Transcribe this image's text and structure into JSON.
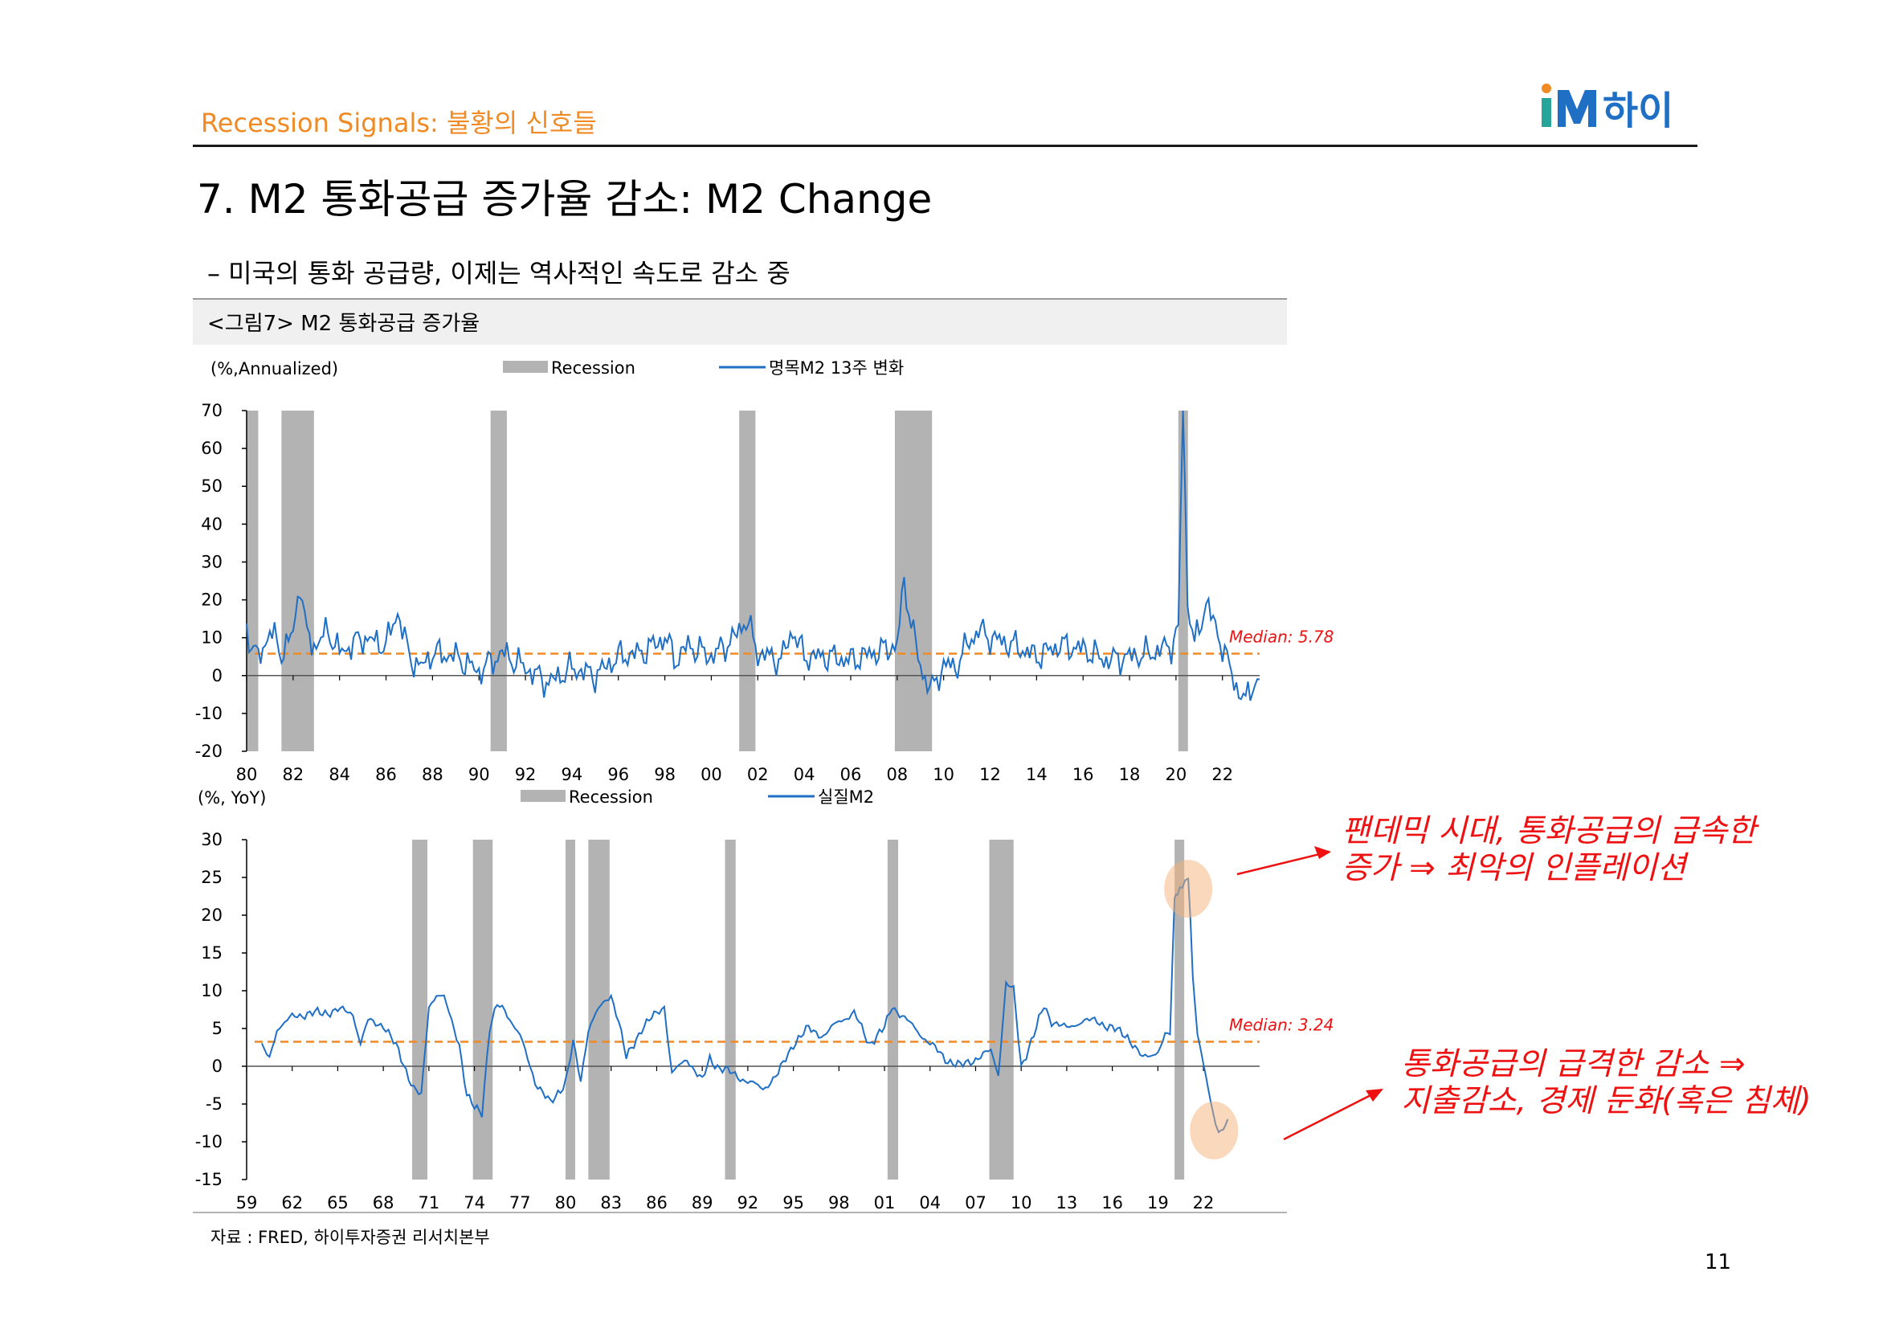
{
  "header": {
    "section_title": "Recession Signals: 불황의 신호들",
    "logo_text": "iM하이"
  },
  "page_title": "7. M2 통화공급 증가율 감소: M2 Change",
  "bullet": "– 미국의 통화 공급량, 이제는 역사적인 속도로 감소 중",
  "figure_label": "<그림7> M2 통화공급 증가율",
  "source": "자료 : FRED, 하이투자증권 리서치본부",
  "page_number": "11",
  "annotations": {
    "pandemic": [
      "팬데믹 시대, 통화공급의 급속한",
      "증가 ⇒ 최악의 인플레이션"
    ],
    "decline": [
      "통화공급의 급격한 감소 ⇒",
      "지출감소, 경제 둔화(혹은 침체)"
    ]
  },
  "colors": {
    "line": "#1f6fc5",
    "recession": "#b3b3b3",
    "median": "#f08a24",
    "accent": "#ee1111",
    "section": "#f08a24"
  },
  "chart_data": [
    {
      "type": "line",
      "title": "명목M2 13주 변화",
      "unit_label": "(%,Annualized)",
      "legend": [
        "Recession",
        "명목M2 13주 변화"
      ],
      "x_start": 1980,
      "x_end": 2023.6,
      "x_ticks": [
        1980,
        1982,
        1984,
        1986,
        1988,
        1990,
        1992,
        1994,
        1996,
        1998,
        2000,
        2002,
        2004,
        2006,
        2008,
        2010,
        2012,
        2014,
        2016,
        2018,
        2020,
        2022
      ],
      "x_tick_labels": [
        "80",
        "82",
        "84",
        "86",
        "88",
        "90",
        "92",
        "94",
        "96",
        "98",
        "00",
        "02",
        "04",
        "06",
        "08",
        "10",
        "12",
        "14",
        "16",
        "18",
        "20",
        "22"
      ],
      "ylim": [
        -20,
        70
      ],
      "y_ticks": [
        -20,
        -10,
        0,
        10,
        20,
        30,
        40,
        50,
        60,
        70
      ],
      "median": 5.78,
      "median_label": "Median: 5.78",
      "recessions": [
        [
          1980.0,
          1980.5
        ],
        [
          1981.5,
          1982.9
        ],
        [
          1990.5,
          1991.2
        ],
        [
          2001.2,
          2001.9
        ],
        [
          2007.9,
          2009.5
        ],
        [
          2020.1,
          2020.4
        ]
      ],
      "series": [
        {
          "name": "명목M2 13주 변화",
          "x": [
            1980.0,
            1980.5,
            1981.0,
            1981.5,
            1982.0,
            1982.3,
            1982.6,
            1983.0,
            1983.5,
            1984.0,
            1985.0,
            1986.0,
            1986.5,
            1987.0,
            1987.5,
            1988.0,
            1989.0,
            1990.0,
            1991.0,
            1991.5,
            1992.0,
            1993.0,
            1994.0,
            1995.0,
            1996.0,
            1997.0,
            1998.0,
            1998.5,
            1999.0,
            2000.0,
            2001.0,
            2001.5,
            2002.0,
            2003.0,
            2003.5,
            2004.0,
            2005.0,
            2006.0,
            2007.0,
            2008.0,
            2008.3,
            2008.6,
            2009.0,
            2009.5,
            2010.0,
            2010.5,
            2011.0,
            2011.5,
            2012.0,
            2013.0,
            2014.0,
            2015.0,
            2016.0,
            2017.0,
            2018.0,
            2019.0,
            2019.8,
            2020.1,
            2020.3,
            2020.5,
            2020.8,
            2021.0,
            2021.3,
            2021.6,
            2022.0,
            2022.3,
            2022.6,
            2023.0,
            2023.3,
            2023.6
          ],
          "values": [
            12,
            4,
            12,
            6,
            11,
            25,
            10,
            8,
            12,
            6,
            10,
            8,
            17,
            5,
            2,
            6,
            5,
            1,
            6,
            4,
            2,
            -2,
            2,
            0,
            5,
            6,
            10,
            4,
            8,
            5,
            10,
            15,
            6,
            4,
            12,
            5,
            5,
            4,
            6,
            8,
            25,
            14,
            2,
            -4,
            3,
            2,
            8,
            12,
            10,
            8,
            5,
            8,
            7,
            4,
            5,
            6,
            8,
            12,
            72,
            20,
            8,
            12,
            20,
            14,
            8,
            2,
            -3,
            -7,
            -2,
            -1
          ]
        }
      ]
    },
    {
      "type": "line",
      "title": "실질M2",
      "unit_label": "(%, YoY)",
      "legend": [
        "Recession",
        "실질M2"
      ],
      "x_start": 1959,
      "x_end": 2025.7,
      "x_ticks": [
        1959,
        1962,
        1965,
        1968,
        1971,
        1974,
        1977,
        1980,
        1983,
        1986,
        1989,
        1992,
        1995,
        1998,
        2001,
        2004,
        2007,
        2010,
        2013,
        2016,
        2019,
        2022
      ],
      "x_tick_labels": [
        "59",
        "62",
        "65",
        "68",
        "71",
        "74",
        "77",
        "80",
        "83",
        "86",
        "89",
        "92",
        "95",
        "98",
        "01",
        "04",
        "07",
        "10",
        "13",
        "16",
        "19",
        "22"
      ],
      "ylim": [
        -15,
        30
      ],
      "y_ticks": [
        -15,
        -10,
        -5,
        0,
        5,
        10,
        15,
        20,
        25,
        30
      ],
      "median": 3.24,
      "median_label": "Median: 3.24",
      "recessions": [
        [
          1969.9,
          1970.9
        ],
        [
          1973.9,
          1975.2
        ],
        [
          1980.0,
          1980.5
        ],
        [
          1981.5,
          1982.9
        ],
        [
          1990.5,
          1991.2
        ],
        [
          2001.2,
          2001.9
        ],
        [
          2007.9,
          2009.5
        ],
        [
          2020.1,
          2020.4
        ]
      ],
      "series": [
        {
          "name": "실질M2",
          "x": [
            1960,
            1960.5,
            1961,
            1962,
            1963,
            1964,
            1965,
            1966,
            1966.5,
            1967,
            1968,
            1969,
            1970,
            1970.5,
            1971,
            1971.5,
            1972,
            1973,
            1973.5,
            1974,
            1974.5,
            1975,
            1975.5,
            1976,
            1977,
            1977.5,
            1978,
            1979,
            1980,
            1980.5,
            1981,
            1981.5,
            1982,
            1983,
            1983.5,
            1984,
            1985,
            1986,
            1986.5,
            1987,
            1988,
            1989,
            1989.5,
            1990,
            1991,
            1992,
            1993,
            1994,
            1995,
            1996,
            1997,
            1998,
            1999,
            2000,
            2001,
            2001.5,
            2002,
            2003,
            2004,
            2005,
            2006,
            2007,
            2008,
            2008.5,
            2009,
            2009.5,
            2010,
            2011,
            2011.5,
            2012,
            2013,
            2014,
            2015,
            2016,
            2017,
            2018,
            2019,
            2019.8,
            2020.1,
            2020.3,
            2020.6,
            2021,
            2021.3,
            2021.6,
            2022,
            2022.3,
            2022.6,
            2023,
            2023.3,
            2023.6
          ],
          "values": [
            2.5,
            1,
            5,
            6.5,
            7,
            7,
            7.5,
            7,
            3,
            6,
            5.5,
            2,
            -3,
            -4,
            8,
            9.5,
            9,
            3,
            -4,
            -5.5,
            -6,
            5,
            8,
            7.5,
            4,
            1,
            -2,
            -5,
            -2,
            3,
            -2,
            5,
            7,
            9.5,
            6,
            1,
            5,
            7,
            8,
            -1,
            1,
            -2,
            1,
            0,
            -1,
            -2,
            -3,
            -1,
            3,
            5,
            4,
            6,
            7,
            3,
            5,
            8,
            7,
            5,
            3,
            1,
            0,
            1,
            2,
            -1,
            11,
            10,
            0,
            5,
            8,
            6,
            5,
            6,
            6,
            5,
            4,
            1,
            2,
            5,
            22,
            23,
            24,
            25,
            12,
            4,
            1,
            -3,
            -6,
            -9,
            -8,
            -7
          ]
        }
      ]
    }
  ]
}
